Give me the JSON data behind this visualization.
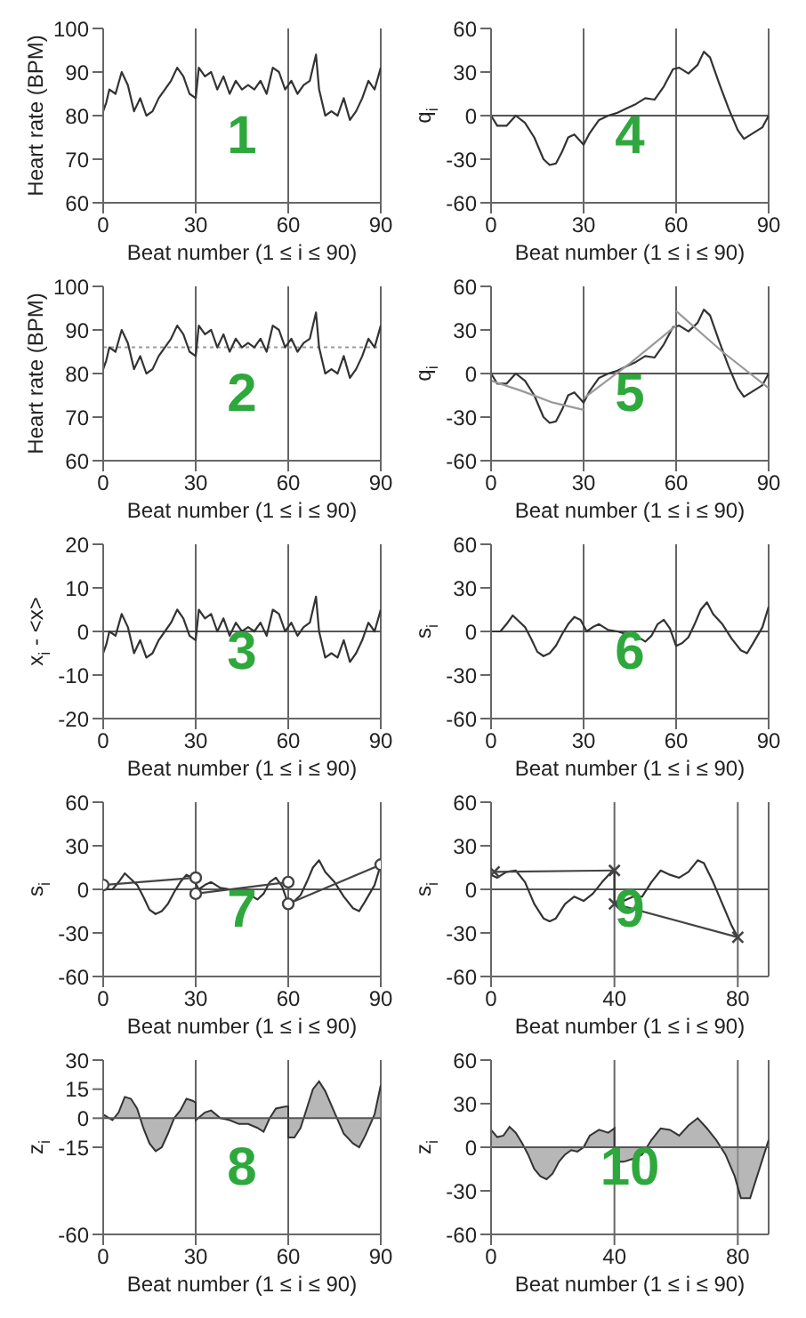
{
  "chart_data": [
    {
      "type": "line",
      "annotations": [
        "1"
      ],
      "xlabel": "Beat number (1 ≤ i ≤ 90)",
      "ylabel": "Heart rate (BPM)",
      "xlim": [
        0,
        90
      ],
      "xticks": [
        0,
        30,
        60,
        90
      ],
      "ylim": [
        60,
        100
      ],
      "yticks": [
        60,
        70,
        80,
        90,
        100
      ],
      "grid": "x",
      "series": [
        {
          "color": "#333333",
          "x": [
            0,
            1,
            2,
            4,
            6,
            8,
            10,
            12,
            14,
            16,
            18,
            20,
            22,
            24,
            26,
            28,
            30,
            31,
            33,
            35,
            37,
            39,
            41,
            43,
            45,
            47,
            49,
            51,
            53,
            55,
            57,
            59,
            61,
            63,
            65,
            67,
            69,
            70,
            72,
            74,
            76,
            78,
            80,
            82,
            84,
            86,
            88,
            90
          ],
          "values": [
            81,
            83,
            86,
            85,
            90,
            87,
            81,
            84,
            80,
            81,
            84,
            86,
            88,
            91,
            89,
            85,
            84,
            91,
            89,
            90,
            86,
            89,
            85,
            88,
            86,
            87,
            86,
            88,
            85,
            91,
            90,
            86,
            88,
            85,
            87,
            88,
            94,
            86,
            80,
            81,
            80,
            84,
            79,
            81,
            84,
            88,
            86,
            91
          ]
        }
      ]
    },
    {
      "type": "line",
      "annotations": [
        "4"
      ],
      "xlabel": "Beat number (1 ≤ i ≤ 90)",
      "ylabel": "q$_{i}$",
      "xlim": [
        0,
        90
      ],
      "xticks": [
        0,
        30,
        60,
        90
      ],
      "ylim": [
        -60,
        60
      ],
      "yticks": [
        -60,
        -30,
        0,
        30,
        60
      ],
      "grid": "x",
      "ref_lines": [
        {
          "axis": "y",
          "value": 0,
          "color": "#555555"
        }
      ],
      "series": [
        {
          "color": "#333333",
          "x": [
            0,
            2,
            5,
            8,
            11,
            14,
            17,
            19,
            21,
            23,
            25,
            27,
            30,
            32,
            35,
            38,
            41,
            44,
            47,
            50,
            53,
            56,
            59,
            61,
            64,
            67,
            69,
            71,
            74,
            77,
            80,
            82,
            85,
            88,
            90
          ],
          "values": [
            0,
            -7,
            -7,
            0,
            -5,
            -15,
            -30,
            -34,
            -33,
            -25,
            -15,
            -13,
            -20,
            -12,
            -3,
            0,
            2,
            5,
            8,
            12,
            11,
            20,
            32,
            33,
            29,
            35,
            44,
            40,
            22,
            5,
            -10,
            -16,
            -12,
            -8,
            0
          ]
        }
      ]
    },
    {
      "type": "line",
      "annotations": [
        "2"
      ],
      "xlabel": "Beat number (1 ≤ i ≤ 90)",
      "ylabel": "Heart rate (BPM)",
      "xlim": [
        0,
        90
      ],
      "xticks": [
        0,
        30,
        60,
        90
      ],
      "ylim": [
        60,
        100
      ],
      "yticks": [
        60,
        70,
        80,
        90,
        100
      ],
      "grid": "x",
      "ref_lines": [
        {
          "axis": "y",
          "value": 86,
          "color": "#999999",
          "line_style": "dotted"
        }
      ],
      "series": [
        {
          "color": "#333333",
          "x": [
            0,
            1,
            2,
            4,
            6,
            8,
            10,
            12,
            14,
            16,
            18,
            20,
            22,
            24,
            26,
            28,
            30,
            31,
            33,
            35,
            37,
            39,
            41,
            43,
            45,
            47,
            49,
            51,
            53,
            55,
            57,
            59,
            61,
            63,
            65,
            67,
            69,
            70,
            72,
            74,
            76,
            78,
            80,
            82,
            84,
            86,
            88,
            90
          ],
          "values": [
            81,
            83,
            86,
            85,
            90,
            87,
            81,
            84,
            80,
            81,
            84,
            86,
            88,
            91,
            89,
            85,
            84,
            91,
            89,
            90,
            86,
            89,
            85,
            88,
            86,
            87,
            86,
            88,
            85,
            91,
            90,
            86,
            88,
            85,
            87,
            88,
            94,
            86,
            80,
            81,
            80,
            84,
            79,
            81,
            84,
            88,
            86,
            91
          ]
        }
      ]
    },
    {
      "type": "line",
      "annotations": [
        "5"
      ],
      "xlabel": "Beat number (1 ≤ i ≤ 90)",
      "ylabel": "q$_{i}$",
      "xlim": [
        0,
        90
      ],
      "xticks": [
        0,
        30,
        60,
        90
      ],
      "ylim": [
        -60,
        60
      ],
      "yticks": [
        -60,
        -30,
        0,
        30,
        60
      ],
      "grid": "x",
      "ref_lines": [
        {
          "axis": "y",
          "value": 0,
          "color": "#555555"
        }
      ],
      "series": [
        {
          "color": "#333333",
          "x": [
            0,
            2,
            5,
            8,
            11,
            14,
            17,
            19,
            21,
            23,
            25,
            27,
            30,
            32,
            35,
            38,
            41,
            44,
            47,
            50,
            53,
            56,
            59,
            61,
            64,
            67,
            69,
            71,
            74,
            77,
            80,
            82,
            85,
            88,
            90
          ],
          "values": [
            0,
            -7,
            -7,
            0,
            -5,
            -15,
            -30,
            -34,
            -33,
            -25,
            -15,
            -13,
            -20,
            -12,
            -3,
            0,
            2,
            5,
            8,
            12,
            11,
            20,
            32,
            33,
            29,
            35,
            44,
            40,
            22,
            5,
            -10,
            -16,
            -12,
            -8,
            0
          ]
        },
        {
          "color": "#999999",
          "x": [
            0,
            10,
            20,
            30,
            null,
            30,
            45,
            60,
            null,
            60,
            75,
            90
          ],
          "values": [
            -5,
            -12,
            -20,
            -25,
            null,
            -17,
            7,
            33,
            null,
            43,
            15,
            -10
          ]
        }
      ]
    },
    {
      "type": "line",
      "annotations": [
        "3"
      ],
      "xlabel": "Beat number (1 ≤ i ≤ 90)",
      "ylabel": "x$_{i}$ - <x>",
      "xlim": [
        0,
        90
      ],
      "xticks": [
        0,
        30,
        60,
        90
      ],
      "ylim": [
        -20,
        20
      ],
      "yticks": [
        -20,
        -10,
        0,
        10,
        20
      ],
      "grid": "x",
      "ref_lines": [
        {
          "axis": "y",
          "value": 0,
          "color": "#555555"
        }
      ],
      "series": [
        {
          "color": "#333333",
          "x": [
            0,
            1,
            2,
            4,
            6,
            8,
            10,
            12,
            14,
            16,
            18,
            20,
            22,
            24,
            26,
            28,
            30,
            31,
            33,
            35,
            37,
            39,
            41,
            43,
            45,
            47,
            49,
            51,
            53,
            55,
            57,
            59,
            61,
            63,
            65,
            67,
            69,
            70,
            72,
            74,
            76,
            78,
            80,
            82,
            84,
            86,
            88,
            90
          ],
          "values": [
            -5,
            -3,
            0,
            -1,
            4,
            1,
            -5,
            -2,
            -6,
            -5,
            -2,
            0,
            2,
            5,
            3,
            -1,
            -2,
            5,
            3,
            4,
            0,
            3,
            -1,
            2,
            0,
            1,
            0,
            2,
            -1,
            5,
            4,
            0,
            2,
            -1,
            1,
            2,
            8,
            0,
            -6,
            -5,
            -6,
            -2,
            -7,
            -5,
            -2,
            2,
            0,
            5
          ]
        }
      ]
    },
    {
      "type": "line",
      "annotations": [
        "6"
      ],
      "xlabel": "Beat number (1 ≤ i ≤ 90)",
      "ylabel": "s$_{i}$",
      "xlim": [
        0,
        90
      ],
      "xticks": [
        0,
        30,
        60,
        90
      ],
      "ylim": [
        -60,
        60
      ],
      "yticks": [
        -60,
        -30,
        0,
        30,
        60
      ],
      "grid": "x",
      "ref_lines": [
        {
          "axis": "y",
          "value": 0,
          "color": "#555555"
        }
      ],
      "series": [
        {
          "color": "#333333",
          "x": [
            0,
            3,
            5,
            7,
            9,
            11,
            13,
            15,
            17,
            19,
            21,
            23,
            25,
            27,
            29,
            31,
            33,
            35,
            38,
            41,
            44,
            47,
            50,
            52,
            54,
            56,
            58,
            60,
            62,
            64,
            66,
            68,
            70,
            72,
            75,
            78,
            81,
            83,
            85,
            88,
            90
          ],
          "values": [
            0,
            0,
            5,
            11,
            7,
            3,
            -5,
            -14,
            -17,
            -15,
            -10,
            -2,
            5,
            10,
            8,
            0,
            3,
            5,
            1,
            0,
            -2,
            -3,
            -7,
            -3,
            5,
            8,
            2,
            -10,
            -8,
            -4,
            5,
            15,
            20,
            12,
            5,
            -5,
            -13,
            -15,
            -8,
            3,
            17
          ]
        }
      ]
    },
    {
      "type": "line",
      "annotations": [
        "7"
      ],
      "xlabel": "Beat number (1 ≤ i ≤ 90)",
      "ylabel": "s$_{i}$",
      "xlim": [
        0,
        90
      ],
      "xticks": [
        0,
        30,
        60,
        90
      ],
      "ylim": [
        -60,
        60
      ],
      "yticks": [
        -60,
        -30,
        0,
        30,
        60
      ],
      "grid": "x",
      "ref_lines": [
        {
          "axis": "y",
          "value": 0,
          "color": "#555555"
        }
      ],
      "series": [
        {
          "color": "#333333",
          "x": [
            0,
            3,
            5,
            7,
            9,
            11,
            13,
            15,
            17,
            19,
            21,
            23,
            25,
            27,
            29,
            31,
            33,
            35,
            38,
            41,
            44,
            47,
            50,
            52,
            54,
            56,
            58,
            60,
            62,
            64,
            66,
            68,
            70,
            72,
            75,
            78,
            81,
            83,
            85,
            88,
            90
          ],
          "values": [
            0,
            0,
            5,
            11,
            7,
            3,
            -5,
            -14,
            -17,
            -15,
            -10,
            -2,
            5,
            10,
            8,
            0,
            3,
            5,
            1,
            0,
            -2,
            -3,
            -7,
            -3,
            5,
            8,
            2,
            -10,
            -8,
            -4,
            5,
            15,
            20,
            12,
            5,
            -5,
            -13,
            -15,
            -8,
            3,
            17
          ]
        },
        {
          "color": "#444444",
          "marker": "circle",
          "x": [
            0,
            30,
            null,
            30,
            60,
            null,
            60,
            90
          ],
          "values": [
            3,
            8,
            null,
            -3,
            5,
            null,
            -10,
            17
          ]
        }
      ]
    },
    {
      "type": "line",
      "annotations": [
        "9"
      ],
      "xlabel": "Beat number (1 ≤ i ≤ 90)",
      "ylabel": "s$_{i}$",
      "xlim": [
        0,
        90
      ],
      "xticks": [
        0,
        40,
        80
      ],
      "ylim": [
        -60,
        60
      ],
      "yticks": [
        -60,
        -30,
        0,
        30,
        60
      ],
      "grid": "x",
      "ref_lines": [
        {
          "axis": "y",
          "value": 0,
          "color": "#555555"
        }
      ],
      "series": [
        {
          "color": "#333333",
          "x": [
            0,
            2,
            5,
            8,
            11,
            14,
            17,
            19,
            21,
            24,
            27,
            30,
            33,
            36,
            39,
            40,
            40,
            43,
            46,
            49,
            52,
            55,
            58,
            61,
            64,
            67,
            69,
            72,
            75,
            78,
            80
          ],
          "values": [
            10,
            8,
            12,
            13,
            5,
            -10,
            -20,
            -22,
            -20,
            -10,
            -5,
            -8,
            -3,
            5,
            12,
            13,
            -10,
            -8,
            -5,
            -5,
            5,
            13,
            10,
            8,
            12,
            20,
            18,
            5,
            -10,
            -25,
            -33
          ]
        },
        {
          "color": "#444444",
          "marker": "cross",
          "x": [
            1,
            40,
            null,
            40,
            80
          ],
          "values": [
            12,
            13,
            null,
            -10,
            -33
          ]
        }
      ]
    },
    {
      "type": "area",
      "annotations": [
        "8"
      ],
      "xlabel": "Beat number (1 ≤ i ≤ 90)",
      "ylabel": "z$_{i}$",
      "xlim": [
        0,
        90
      ],
      "xticks": [
        0,
        30,
        60,
        90
      ],
      "ylim": [
        -60,
        30
      ],
      "yticks": [
        -60,
        -15,
        0,
        15,
        30
      ],
      "grid": "x",
      "ref_lines": [
        {
          "axis": "y",
          "value": 0,
          "color": "#555555"
        }
      ],
      "series": [
        {
          "color": "#999999",
          "x": [
            0,
            3,
            5,
            7,
            9,
            11,
            13,
            15,
            17,
            19,
            21,
            23,
            25,
            27,
            29,
            30,
            30,
            33,
            35,
            38,
            41,
            44,
            47,
            50,
            52,
            54,
            56,
            59,
            60,
            60,
            62,
            64,
            66,
            68,
            70,
            72,
            75,
            78,
            81,
            83,
            85,
            88,
            90
          ],
          "values": [
            2,
            -1,
            3,
            11,
            10,
            5,
            -5,
            -13,
            -17,
            -15,
            -8,
            0,
            4,
            10,
            9,
            8,
            -1,
            3,
            4,
            0,
            -1,
            -3,
            -3,
            -5,
            -7,
            0,
            5,
            6,
            6,
            -10,
            -10,
            -5,
            5,
            15,
            19,
            14,
            3,
            -8,
            -13,
            -15,
            -9,
            2,
            17
          ]
        }
      ]
    },
    {
      "type": "area",
      "annotations": [
        "10"
      ],
      "xlabel": "Beat number (1 ≤ i ≤ 90)",
      "ylabel": "z$_{i}$",
      "xlim": [
        0,
        90
      ],
      "xticks": [
        0,
        40,
        80
      ],
      "ylim": [
        -60,
        60
      ],
      "yticks": [
        -60,
        -30,
        0,
        30,
        60
      ],
      "grid": "x",
      "ref_lines": [
        {
          "axis": "y",
          "value": 0,
          "color": "#555555"
        }
      ],
      "series": [
        {
          "color": "#999999",
          "x": [
            0,
            2,
            4,
            6,
            8,
            10,
            12,
            14,
            16,
            18,
            20,
            22,
            24,
            26,
            28,
            30,
            32,
            35,
            38,
            40,
            40,
            43,
            46,
            49,
            52,
            55,
            58,
            61,
            64,
            67,
            70,
            73,
            76,
            79,
            81,
            84,
            87,
            90
          ],
          "values": [
            12,
            7,
            8,
            14,
            10,
            3,
            -5,
            -15,
            -20,
            -22,
            -18,
            -10,
            -5,
            -2,
            -3,
            0,
            8,
            12,
            10,
            13,
            -10,
            -10,
            -8,
            -5,
            5,
            13,
            12,
            8,
            15,
            20,
            13,
            5,
            -5,
            -20,
            -35,
            -35,
            -15,
            5
          ]
        }
      ]
    }
  ]
}
